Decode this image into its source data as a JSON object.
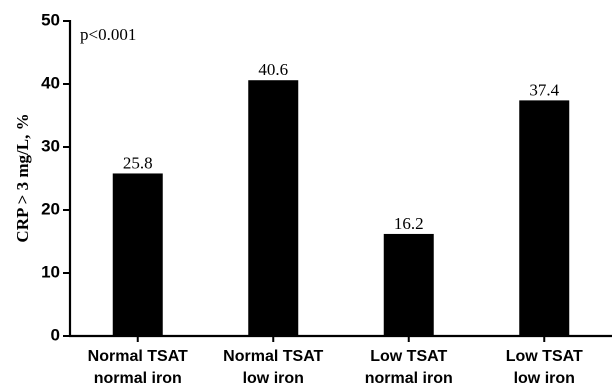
{
  "chart_data": {
    "type": "bar",
    "categories": [
      [
        "Normal TSAT",
        "normal iron"
      ],
      [
        "Normal TSAT",
        "low iron"
      ],
      [
        "Low TSAT",
        "normal iron"
      ],
      [
        "Low TSAT",
        "low iron"
      ]
    ],
    "values": [
      25.8,
      40.6,
      16.2,
      37.4
    ],
    "data_labels": [
      "25.8",
      "40.6",
      "16.2",
      "37.4"
    ],
    "title": "",
    "xlabel": "",
    "ylabel": "CRP > 3 mg/L, %",
    "ylim": [
      0,
      50
    ],
    "yticks": [
      0,
      10,
      20,
      30,
      40,
      50
    ],
    "annotation": "p<0.001",
    "bar_color": "#000000",
    "grid": false,
    "legend": "none"
  }
}
